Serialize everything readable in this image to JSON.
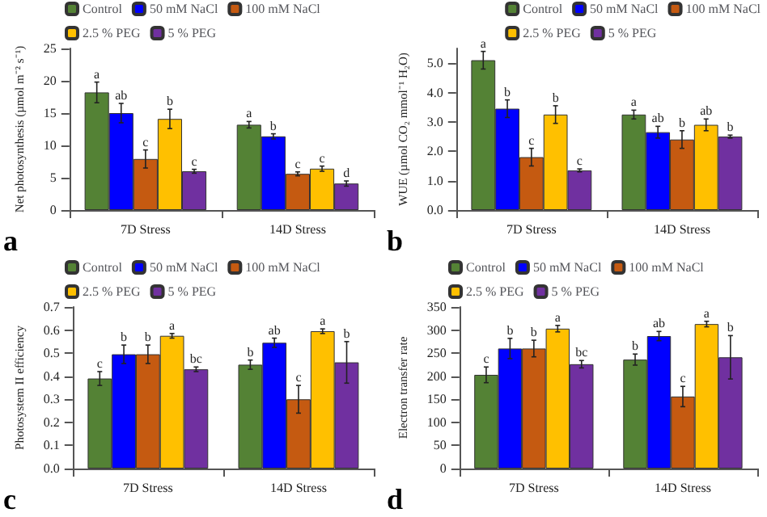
{
  "chart_data": [
    {
      "type": "bar",
      "ylabel": "Net photosynthesis (µmol m⁻² s⁻¹)",
      "categories": [
        "7D Stress",
        "14D Stress"
      ],
      "legend": "top left",
      "grid": false,
      "ylim": [
        0,
        25
      ],
      "yticks": [
        0,
        5,
        10,
        15,
        20,
        25
      ],
      "annotations": [
        "a"
      ],
      "series": [
        {
          "name": "Control",
          "color": "#548235",
          "values": [
            18.2,
            13.2
          ],
          "errors": [
            1.6,
            0.5
          ],
          "value_labels": [
            "a",
            "a"
          ]
        },
        {
          "name": "50 mM NaCl",
          "color": "#0000ff",
          "values": [
            15.0,
            11.4
          ],
          "errors": [
            1.5,
            0.4
          ],
          "value_labels": [
            "ab",
            "b"
          ]
        },
        {
          "name": "100 mM NaCl",
          "color": "#c55a11",
          "values": [
            7.9,
            5.6
          ],
          "errors": [
            1.4,
            0.3
          ],
          "value_labels": [
            "c",
            "c"
          ]
        },
        {
          "name": "2.5 % PEG",
          "color": "#ffc000",
          "values": [
            14.1,
            6.4
          ],
          "errors": [
            1.5,
            0.4
          ],
          "value_labels": [
            "b",
            "c"
          ]
        },
        {
          "name": "5 % PEG",
          "color": "#7030a0",
          "values": [
            6.0,
            4.1
          ],
          "errors": [
            0.3,
            0.4
          ],
          "value_labels": [
            "c",
            "d"
          ]
        }
      ]
    },
    {
      "type": "bar",
      "ylabel": "WUE (µmol CO₂ mmol⁻¹ H₂O)",
      "categories": [
        "7D Stress",
        "14D Stress"
      ],
      "legend": "top right",
      "grid": false,
      "ylim": [
        0,
        5.5
      ],
      "yticks": [
        {
          "value": 0,
          "label": "0.0"
        },
        {
          "value": 1,
          "label": "1.0"
        },
        {
          "value": 2,
          "label": "2.0"
        },
        {
          "value": 3,
          "label": "3.0"
        },
        {
          "value": 4,
          "label": "4.0"
        },
        {
          "value": 5,
          "label": "5.0"
        }
      ],
      "annotations": [
        "b"
      ],
      "series": [
        {
          "name": "Control",
          "color": "#548235",
          "values": [
            5.1,
            3.25
          ],
          "errors": [
            0.3,
            0.15
          ],
          "value_labels": [
            "a",
            "a"
          ]
        },
        {
          "name": "50 mM NaCl",
          "color": "#0000ff",
          "values": [
            3.45,
            2.65
          ],
          "errors": [
            0.3,
            0.2
          ],
          "value_labels": [
            "b",
            "ab"
          ]
        },
        {
          "name": "100 mM NaCl",
          "color": "#c55a11",
          "values": [
            1.8,
            2.4
          ],
          "errors": [
            0.3,
            0.3
          ],
          "value_labels": [
            "c",
            "b"
          ]
        },
        {
          "name": "2.5 % PEG",
          "color": "#ffc000",
          "values": [
            3.25,
            2.9
          ],
          "errors": [
            0.3,
            0.2
          ],
          "value_labels": [
            "b",
            "ab"
          ]
        },
        {
          "name": "5 % PEG",
          "color": "#7030a0",
          "values": [
            1.35,
            2.5
          ],
          "errors": [
            0.05,
            0.05
          ],
          "value_labels": [
            "c",
            "b"
          ]
        }
      ]
    },
    {
      "type": "bar",
      "ylabel": "Photosystem II efficiency",
      "categories": [
        "7D Stress",
        "14D Stress"
      ],
      "legend": "top left",
      "grid": false,
      "ylim": [
        0,
        0.7
      ],
      "yticks": [
        {
          "value": 0,
          "label": "0.0"
        },
        {
          "value": 0.1,
          "label": "0.1"
        },
        {
          "value": 0.2,
          "label": "0.2"
        },
        {
          "value": 0.3,
          "label": "0.3"
        },
        {
          "value": 0.4,
          "label": "0.4"
        },
        {
          "value": 0.5,
          "label": "0.5"
        },
        {
          "value": 0.6,
          "label": "0.6"
        },
        {
          "value": 0.7,
          "label": "0.7"
        }
      ],
      "annotations": [
        "c"
      ],
      "series": [
        {
          "name": "Control",
          "color": "#548235",
          "values": [
            0.39,
            0.45
          ],
          "errors": [
            0.03,
            0.02
          ],
          "value_labels": [
            "c",
            "b"
          ]
        },
        {
          "name": "50 mM NaCl",
          "color": "#0000ff",
          "values": [
            0.495,
            0.545
          ],
          "errors": [
            0.04,
            0.02
          ],
          "value_labels": [
            "b",
            "ab"
          ]
        },
        {
          "name": "100 mM NaCl",
          "color": "#c55a11",
          "values": [
            0.495,
            0.3
          ],
          "errors": [
            0.04,
            0.06
          ],
          "value_labels": [
            "b",
            "c"
          ]
        },
        {
          "name": "2.5 % PEG",
          "color": "#ffc000",
          "values": [
            0.575,
            0.595
          ],
          "errors": [
            0.01,
            0.01
          ],
          "value_labels": [
            "a",
            "a"
          ]
        },
        {
          "name": "5 % PEG",
          "color": "#7030a0",
          "values": [
            0.43,
            0.46
          ],
          "errors": [
            0.01,
            0.09
          ],
          "value_labels": [
            "bc",
            "b"
          ]
        }
      ]
    },
    {
      "type": "bar",
      "ylabel": "Electron transfer rate",
      "categories": [
        "7D Stress",
        "14D Stress"
      ],
      "legend": "top left",
      "grid": false,
      "ylim": [
        0,
        350
      ],
      "yticks": [
        0,
        50,
        100,
        150,
        200,
        250,
        300,
        350
      ],
      "annotations": [
        "d"
      ],
      "series": [
        {
          "name": "Control",
          "color": "#548235",
          "values": [
            203,
            236
          ],
          "errors": [
            17,
            12
          ],
          "value_labels": [
            "c",
            "b"
          ]
        },
        {
          "name": "50 mM NaCl",
          "color": "#0000ff",
          "values": [
            260,
            287
          ],
          "errors": [
            22,
            10
          ],
          "value_labels": [
            "b",
            "ab"
          ]
        },
        {
          "name": "100 mM NaCl",
          "color": "#c55a11",
          "values": [
            260,
            156
          ],
          "errors": [
            18,
            22
          ],
          "value_labels": [
            "b",
            "c"
          ]
        },
        {
          "name": "2.5 % PEG",
          "color": "#ffc000",
          "values": [
            303,
            313
          ],
          "errors": [
            7,
            6
          ],
          "value_labels": [
            "a",
            "a"
          ]
        },
        {
          "name": "5 % PEG",
          "color": "#7030a0",
          "values": [
            226,
            241
          ],
          "errors": [
            8,
            47
          ],
          "value_labels": [
            "bc",
            "b"
          ]
        }
      ]
    }
  ]
}
